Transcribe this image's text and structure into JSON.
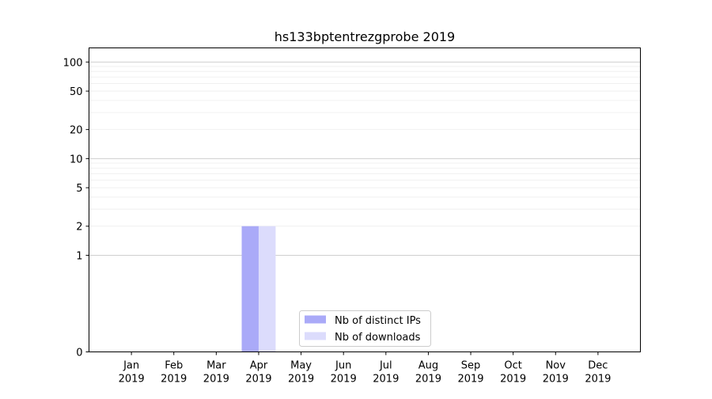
{
  "chart_data": {
    "type": "bar",
    "title": "hs133bptentrezgprobe 2019",
    "xlabel": "",
    "ylabel": "",
    "y_scale": "symlog",
    "y_ticks": [
      0,
      1,
      2,
      5,
      10,
      20,
      50,
      100
    ],
    "ylim": [
      0,
      140
    ],
    "grid": "horizontal",
    "legend_position": "lower-center",
    "categories": [
      {
        "month": "Jan",
        "year": "2019"
      },
      {
        "month": "Feb",
        "year": "2019"
      },
      {
        "month": "Mar",
        "year": "2019"
      },
      {
        "month": "Apr",
        "year": "2019"
      },
      {
        "month": "May",
        "year": "2019"
      },
      {
        "month": "Jun",
        "year": "2019"
      },
      {
        "month": "Jul",
        "year": "2019"
      },
      {
        "month": "Aug",
        "year": "2019"
      },
      {
        "month": "Sep",
        "year": "2019"
      },
      {
        "month": "Oct",
        "year": "2019"
      },
      {
        "month": "Nov",
        "year": "2019"
      },
      {
        "month": "Dec",
        "year": "2019"
      }
    ],
    "series": [
      {
        "name": "Nb of distinct IPs",
        "color": "#aaaaf8",
        "values": [
          0,
          0,
          0,
          2,
          0,
          0,
          0,
          0,
          0,
          0,
          0,
          0
        ]
      },
      {
        "name": "Nb of downloads",
        "color": "#dcdcfc",
        "values": [
          0,
          0,
          0,
          2,
          0,
          0,
          0,
          0,
          0,
          0,
          0,
          0
        ]
      }
    ]
  }
}
